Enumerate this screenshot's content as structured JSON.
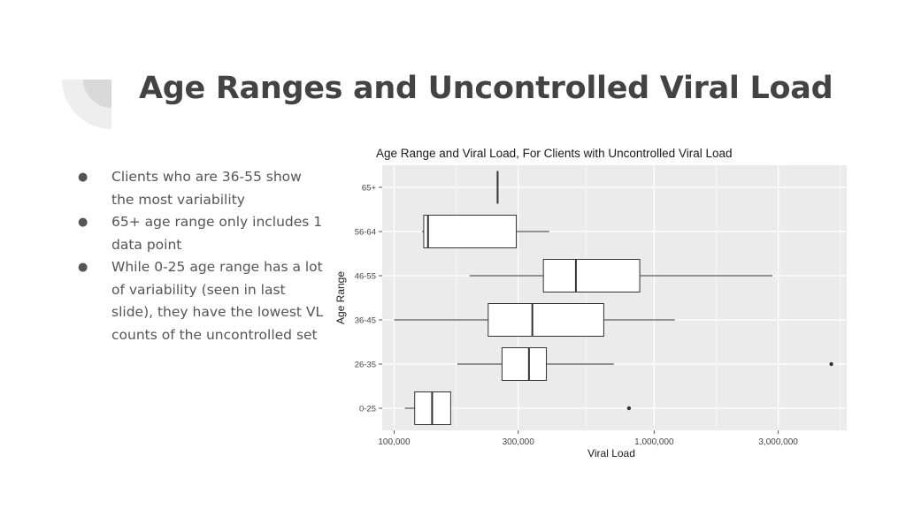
{
  "slide": {
    "title": "Age Ranges and Uncontrolled Viral Load",
    "bullets": [
      "Clients who are 36-55 show the most variability",
      "65+ age range only includes 1 data point",
      "While 0-25 age range has a lot of variability (seen in last slide), they have the lowest VL counts of the uncontrolled set"
    ]
  },
  "chart_data": {
    "type": "boxplot",
    "title": "Age Range and Viral Load, For Clients with Uncontrolled Viral Load",
    "xlabel": "Viral Load",
    "ylabel": "Age Range",
    "x_scale": "log10",
    "xlim": [
      90000,
      5500000
    ],
    "x_ticks": [
      100000,
      300000,
      1000000,
      3000000
    ],
    "x_tick_labels": [
      "100,000",
      "300,000",
      "1,000,000",
      "3,000,000"
    ],
    "categories": [
      "0-25",
      "26-35",
      "36-45",
      "46-55",
      "56-64",
      "65+"
    ],
    "boxes": [
      {
        "category": "0-25",
        "whisker_low": 110000,
        "q1": 120000,
        "median": 140000,
        "q3": 165000,
        "whisker_high": 165000,
        "outliers": [
          800000
        ]
      },
      {
        "category": "26-35",
        "whisker_low": 175000,
        "q1": 260000,
        "median": 330000,
        "q3": 385000,
        "whisker_high": 700000,
        "outliers": [
          4800000
        ]
      },
      {
        "category": "36-45",
        "whisker_low": 100000,
        "q1": 230000,
        "median": 340000,
        "q3": 640000,
        "whisker_high": 1200000,
        "outliers": []
      },
      {
        "category": "46-55",
        "whisker_low": 195000,
        "q1": 375000,
        "median": 500000,
        "q3": 880000,
        "whisker_high": 2850000,
        "outliers": []
      },
      {
        "category": "56-64",
        "whisker_low": 128000,
        "q1": 130000,
        "median": 135000,
        "q3": 295000,
        "whisker_high": 395000,
        "outliers": []
      },
      {
        "category": "65+",
        "whisker_low": 250000,
        "q1": 250000,
        "median": 250000,
        "q3": 250000,
        "whisker_high": 250000,
        "outliers": []
      }
    ],
    "grid": true,
    "legend": "none",
    "colors": {
      "panel": "#ebebeb",
      "grid": "#ffffff",
      "box_fill": "#ffffff",
      "box_stroke": "#333333"
    }
  }
}
